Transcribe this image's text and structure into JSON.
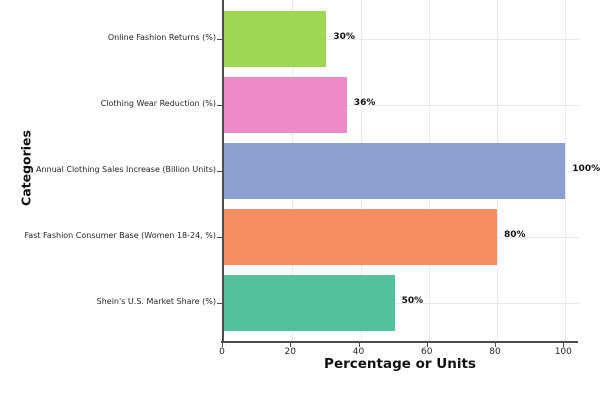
{
  "chart_data": {
    "type": "bar",
    "orientation": "horizontal",
    "categories": [
      "Online Fashion Returns (%)",
      "Clothing Wear Reduction (%)",
      "Annual Clothing Sales Increase (Billion Units)",
      "Fast Fashion Consumer Base (Women 18-24, %)",
      "Shein's U.S. Market Share (%)"
    ],
    "values": [
      30,
      36,
      100,
      80,
      50
    ],
    "value_labels": [
      "30%",
      "36%",
      "100%",
      "80%",
      "50%"
    ],
    "bar_colors": [
      "#9fd653",
      "#ec8bc6",
      "#8c9fd0",
      "#f98e62",
      "#54c19c"
    ],
    "xlabel": "Percentage or Units",
    "ylabel": "Categories",
    "xlim": [
      0,
      104
    ],
    "x_ticks": [
      "0",
      "20",
      "40",
      "60",
      "80",
      "100"
    ],
    "x_tick_values": [
      0,
      20,
      40,
      60,
      80,
      100
    ],
    "grid": true,
    "legend": null
  },
  "colors": {
    "grid": "#ebebeb",
    "spine": "#4d4d4d",
    "text": "#262626",
    "background": "#ffffff"
  }
}
